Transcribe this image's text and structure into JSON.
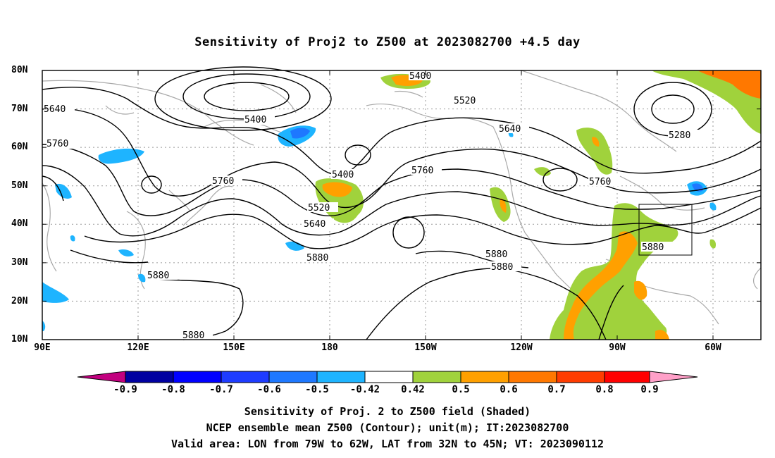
{
  "title": "Sensitivity of Proj2 to Z500 at 2023082700 +4.5 day",
  "lat_labels": [
    "80N",
    "70N",
    "60N",
    "50N",
    "40N",
    "30N",
    "20N",
    "10N"
  ],
  "lon_labels": [
    "90E",
    "120E",
    "150E",
    "180",
    "150W",
    "120W",
    "90W",
    "60W"
  ],
  "contour_labels": [
    "5640",
    "5760",
    "5400",
    "5400",
    "5520",
    "5640",
    "5280",
    "5400",
    "5760",
    "5760",
    "5760",
    "5520",
    "5640",
    "5880",
    "5880",
    "5880",
    "5880",
    "5880",
    "5880"
  ],
  "colorbar": {
    "labels": [
      "-0.9",
      "-0.8",
      "-0.7",
      "-0.6",
      "-0.5",
      "-0.42",
      "0.42",
      "0.5",
      "0.6",
      "0.7",
      "0.8",
      "0.9"
    ],
    "colors": [
      "#c2007f",
      "#0000a0",
      "#0000ff",
      "#1e3cff",
      "#1e78ff",
      "#1eb4ff",
      "#00c8ff",
      "#ffffff",
      "#a0d23c",
      "#ffa000",
      "#ff7800",
      "#ff3c00",
      "#ff0000",
      "#ffa0c8"
    ]
  },
  "captions": [
    "Sensitivity of Proj. 2 to Z500 field (Shaded)",
    "NCEP ensemble mean Z500 (Contour); unit(m); IT:2023082700",
    "Valid area: LON from 79W to 62W, LAT from 32N to 45N; VT: 2023090112"
  ]
}
